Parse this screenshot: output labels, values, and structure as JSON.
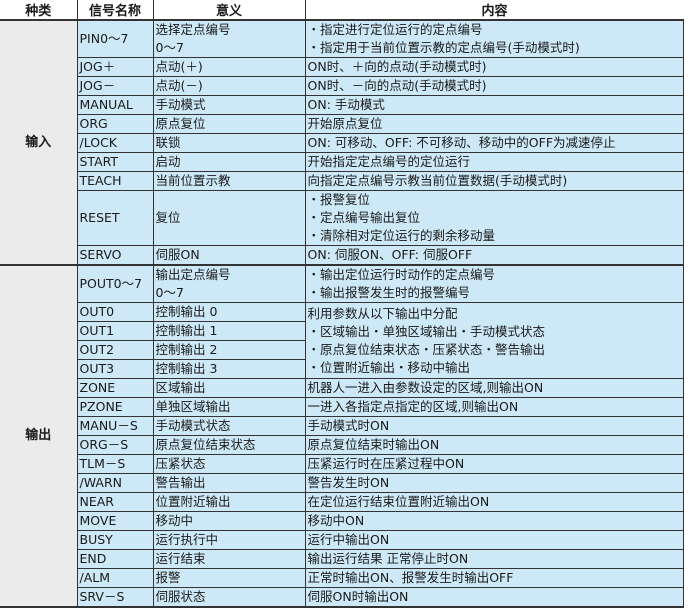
{
  "headers": [
    "种类",
    "信号名称",
    "意义",
    "内容"
  ],
  "groups": [
    {
      "category": "输入",
      "rows": [
        {
          "signal": "PIN0～7",
          "meaning": [
            "选择定点编号",
            "0～7"
          ],
          "content": [
            "・指定进行定位运行的定点编号",
            "・指定用于当前位置示教的定点编号(手动模式时)"
          ]
        },
        {
          "signal": "JOG＋",
          "meaning": [
            "点动(＋)"
          ],
          "content": [
            "ON时、＋向的点动(手动模式时)"
          ]
        },
        {
          "signal": "JOG－",
          "meaning": [
            "点动(－)"
          ],
          "content": [
            "ON时、－向的点动(手动模式时)"
          ]
        },
        {
          "signal": "MANUAL",
          "meaning": [
            "手动模式"
          ],
          "content": [
            "ON: 手动模式"
          ]
        },
        {
          "signal": "ORG",
          "meaning": [
            "原点复位"
          ],
          "content": [
            "开始原点复位"
          ]
        },
        {
          "signal": "/LOCK",
          "meaning": [
            "联锁"
          ],
          "content": [
            "ON: 可移动、OFF: 不可移动、移动中的OFF为减速停止"
          ]
        },
        {
          "signal": "START",
          "meaning": [
            "启动"
          ],
          "content": [
            "开始指定定点编号的定位运行"
          ]
        },
        {
          "signal": "TEACH",
          "meaning": [
            "当前位置示教"
          ],
          "content": [
            "向指定定点编号示教当前位置数据(手动模式时)"
          ]
        },
        {
          "signal": "RESET",
          "meaning": [
            "复位"
          ],
          "content": [
            "・报警复位",
            "・定点编号输出复位",
            "・清除相对定位运行的剩余移动量"
          ]
        },
        {
          "signal": "SERVO",
          "meaning": [
            "伺服ON"
          ],
          "content": [
            "ON: 伺服ON、OFF: 伺服OFF"
          ]
        }
      ]
    },
    {
      "category": "输出",
      "rows": [
        {
          "signal": "POUT0～7",
          "meaning": [
            "输出定点编号",
            "0～7"
          ],
          "content": [
            "・输出定位运行时动作的定点编号",
            "・输出报警发生时的报警编号"
          ]
        },
        {
          "signal": "OUT0",
          "meaning": [
            "控制输出 0"
          ],
          "content": [
            "利用参数从以下输出中分配",
            "・区域输出・单独区域输出・手动模式状态",
            "・原点复位结束状态・压紧状态・警告输出",
            "・位置附近输出・移动中输出"
          ],
          "span": 4
        },
        {
          "signal": "OUT1",
          "meaning": [
            "控制输出 1"
          ]
        },
        {
          "signal": "OUT2",
          "meaning": [
            "控制输出 2"
          ]
        },
        {
          "signal": "OUT3",
          "meaning": [
            "控制输出 3"
          ]
        },
        {
          "signal": "ZONE",
          "meaning": [
            "区域输出"
          ],
          "content": [
            "机器人一进入由参数设定的区域,则输出ON"
          ]
        },
        {
          "signal": "PZONE",
          "meaning": [
            "单独区域输出"
          ],
          "content": [
            "一进入各指定点指定的区域,则输出ON"
          ]
        },
        {
          "signal": "MANU－S",
          "meaning": [
            "手动模式状态"
          ],
          "content": [
            "手动模式时ON"
          ]
        },
        {
          "signal": "ORG－S",
          "meaning": [
            "原点复位结束状态"
          ],
          "content": [
            "原点复位结束时输出ON"
          ]
        },
        {
          "signal": "TLM－S",
          "meaning": [
            "压紧状态"
          ],
          "content": [
            "压紧运行时在压紧过程中ON"
          ]
        },
        {
          "signal": "/WARN",
          "meaning": [
            "警告输出"
          ],
          "content": [
            "警告发生时ON"
          ]
        },
        {
          "signal": "NEAR",
          "meaning": [
            "位置附近输出"
          ],
          "content": [
            "在定位运行结束位置附近输出ON"
          ]
        },
        {
          "signal": "MOVE",
          "meaning": [
            "移动中"
          ],
          "content": [
            "移动中ON"
          ]
        },
        {
          "signal": "BUSY",
          "meaning": [
            "运行执行中"
          ],
          "content": [
            "运行中输出ON"
          ]
        },
        {
          "signal": "END",
          "meaning": [
            "运行结束"
          ],
          "content": [
            "输出运行结果 正常停止时ON"
          ]
        },
        {
          "signal": "/ALM",
          "meaning": [
            "报警"
          ],
          "content": [
            "正常时输出ON、报警发生时输出OFF"
          ]
        },
        {
          "signal": "SRV－S",
          "meaning": [
            "伺服状态"
          ],
          "content": [
            "伺服ON时输出ON"
          ]
        }
      ]
    }
  ]
}
